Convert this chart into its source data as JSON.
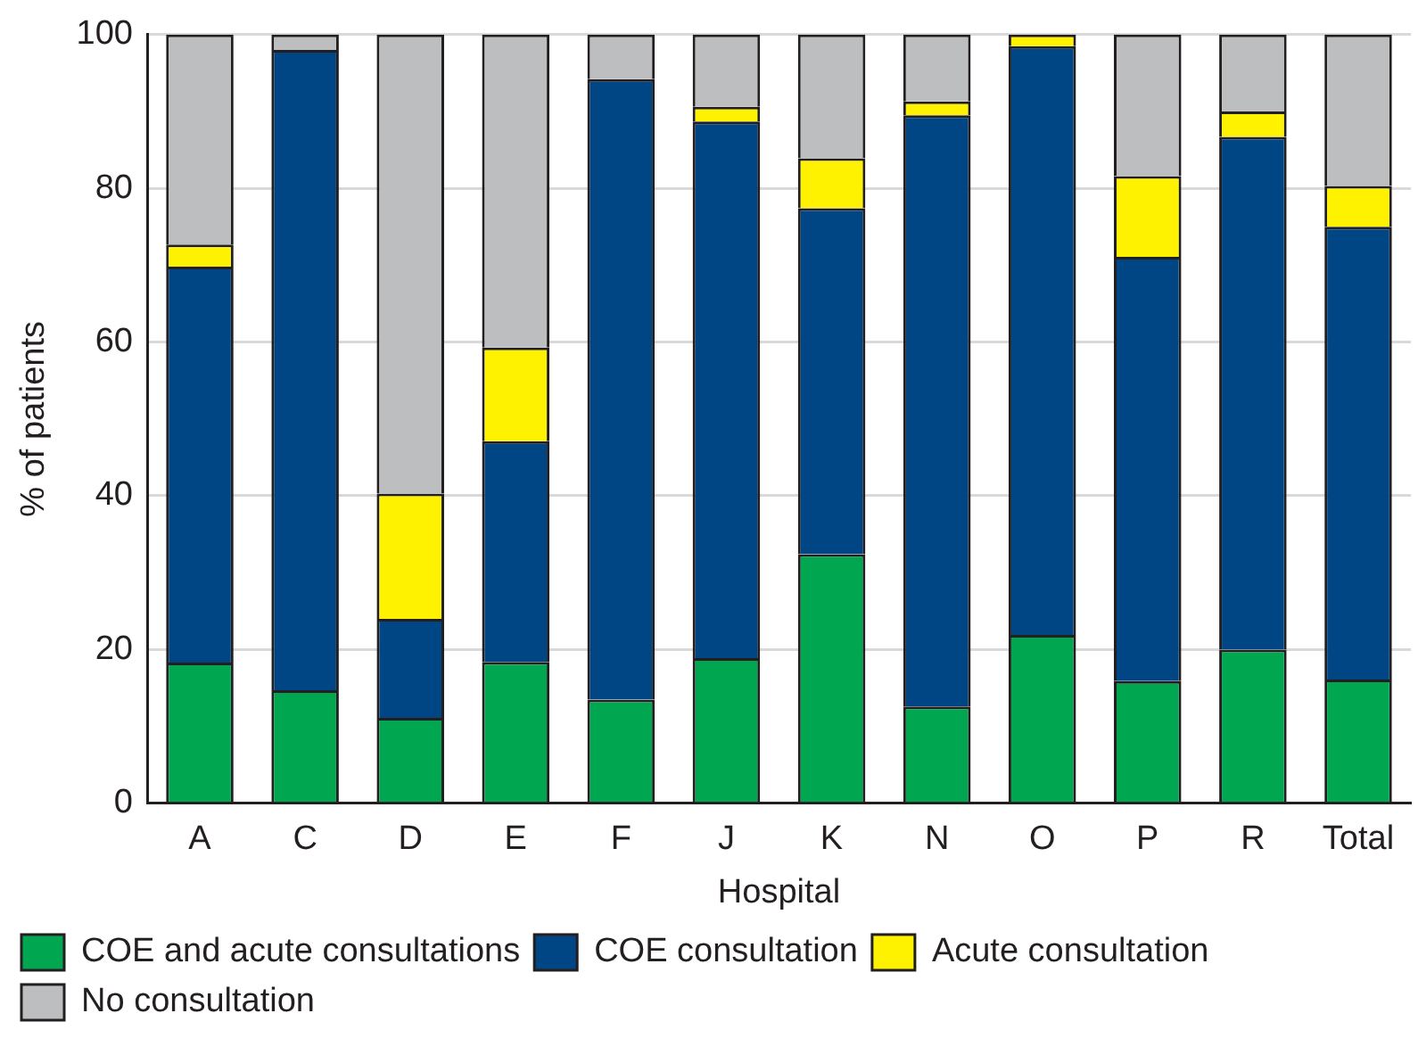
{
  "chart_data": {
    "type": "bar",
    "stacked": true,
    "xlabel": "Hospital",
    "ylabel": "% of patients",
    "categories": [
      "A",
      "C",
      "D",
      "E",
      "F",
      "J",
      "K",
      "N",
      "O",
      "P",
      "R",
      "Total"
    ],
    "series": [
      {
        "name": "COE and acute consultations",
        "color": "#00a650",
        "values": [
          18.3,
          14.7,
          11.1,
          18.4,
          13.5,
          18.9,
          32.4,
          12.6,
          21.9,
          15.9,
          20.0,
          16.1
        ]
      },
      {
        "name": "COE consultation",
        "color": "#004684",
        "values": [
          51.5,
          83.3,
          12.9,
          28.7,
          80.7,
          69.8,
          45.0,
          76.9,
          76.6,
          55.2,
          66.7,
          58.9
        ]
      },
      {
        "name": "Acute consultation",
        "color": "#fff200",
        "values": [
          2.9,
          0,
          16.3,
          12.2,
          0,
          1.9,
          6.5,
          1.8,
          1.5,
          10.5,
          3.3,
          5.3
        ]
      },
      {
        "name": "No consultation",
        "color": "#bcbec0",
        "values": [
          27.3,
          2.0,
          59.7,
          40.7,
          5.8,
          9.4,
          16.1,
          8.7,
          0,
          18.4,
          10.0,
          19.7
        ]
      }
    ],
    "ylim": [
      0,
      100
    ],
    "yticks": [
      0,
      20,
      40,
      60,
      80,
      100
    ],
    "grid": "y",
    "legend": "bottom"
  }
}
